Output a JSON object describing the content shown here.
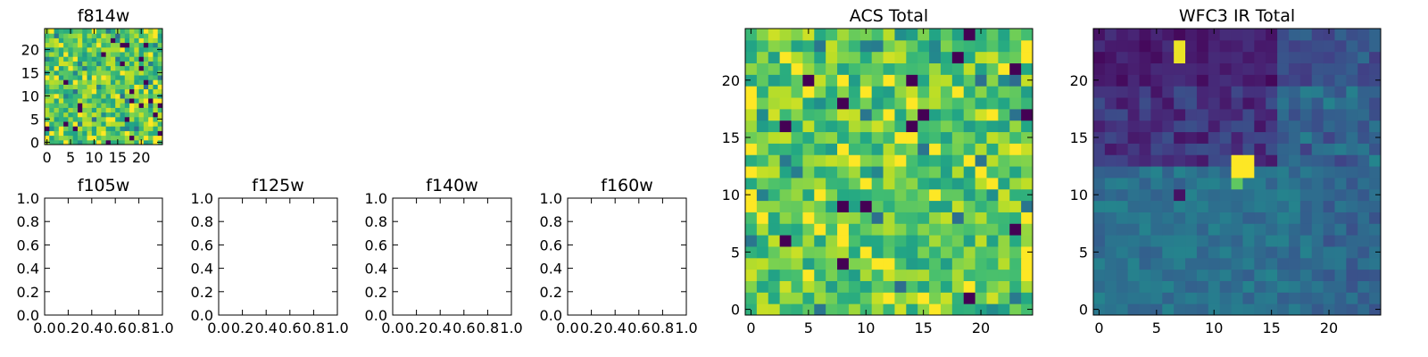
{
  "chart_data": [
    {
      "id": "f814w",
      "type": "heatmap",
      "title": "f814w",
      "xlim": [
        -0.5,
        24.5
      ],
      "ylim": [
        -0.5,
        24.5
      ],
      "xticks": [
        0,
        5,
        10,
        15,
        20
      ],
      "yticks": [
        0,
        5,
        10,
        15,
        20
      ],
      "colormap": "viridis",
      "grid_size": 25,
      "pattern": "noise-high"
    },
    {
      "id": "f105w",
      "type": "empty",
      "title": "f105w",
      "xlim": [
        0.0,
        1.0
      ],
      "ylim": [
        0.0,
        1.0
      ],
      "xticks": [
        "0.0",
        "0.2",
        "0.4",
        "0.6",
        "0.8",
        "1.0"
      ],
      "yticks": [
        "0.0",
        "0.2",
        "0.4",
        "0.6",
        "0.8",
        "1.0"
      ]
    },
    {
      "id": "f125w",
      "type": "empty",
      "title": "f125w",
      "xlim": [
        0.0,
        1.0
      ],
      "ylim": [
        0.0,
        1.0
      ],
      "xticks": [
        "0.0",
        "0.2",
        "0.4",
        "0.6",
        "0.8",
        "1.0"
      ],
      "yticks": [
        "0.0",
        "0.2",
        "0.4",
        "0.6",
        "0.8",
        "1.0"
      ]
    },
    {
      "id": "f140w",
      "type": "empty",
      "title": "f140w",
      "xlim": [
        0.0,
        1.0
      ],
      "ylim": [
        0.0,
        1.0
      ],
      "xticks": [
        "0.0",
        "0.2",
        "0.4",
        "0.6",
        "0.8",
        "1.0"
      ],
      "yticks": [
        "0.0",
        "0.2",
        "0.4",
        "0.6",
        "0.8",
        "1.0"
      ]
    },
    {
      "id": "f160w",
      "type": "empty",
      "title": "f160w",
      "xlim": [
        0.0,
        1.0
      ],
      "ylim": [
        0.0,
        1.0
      ],
      "xticks": [
        "0.0",
        "0.2",
        "0.4",
        "0.6",
        "0.8",
        "1.0"
      ],
      "yticks": [
        "0.0",
        "0.2",
        "0.4",
        "0.6",
        "0.8",
        "1.0"
      ]
    },
    {
      "id": "acs-total",
      "type": "heatmap",
      "title": "ACS Total",
      "xlim": [
        -0.5,
        24.5
      ],
      "ylim": [
        -0.5,
        24.5
      ],
      "xticks": [
        0,
        5,
        10,
        15,
        20
      ],
      "yticks": [
        0,
        5,
        10,
        15,
        20
      ],
      "colormap": "viridis",
      "grid_size": 25,
      "pattern": "noise-high"
    },
    {
      "id": "wfc3-ir-total",
      "type": "heatmap",
      "title": "WFC3 IR Total",
      "xlim": [
        -0.5,
        24.5
      ],
      "ylim": [
        -0.5,
        24.5
      ],
      "xticks": [
        0,
        5,
        10,
        15,
        20
      ],
      "yticks": [
        0,
        5,
        10,
        15,
        20
      ],
      "colormap": "viridis",
      "grid_size": 25,
      "pattern": "dark-top-bright-center"
    }
  ]
}
